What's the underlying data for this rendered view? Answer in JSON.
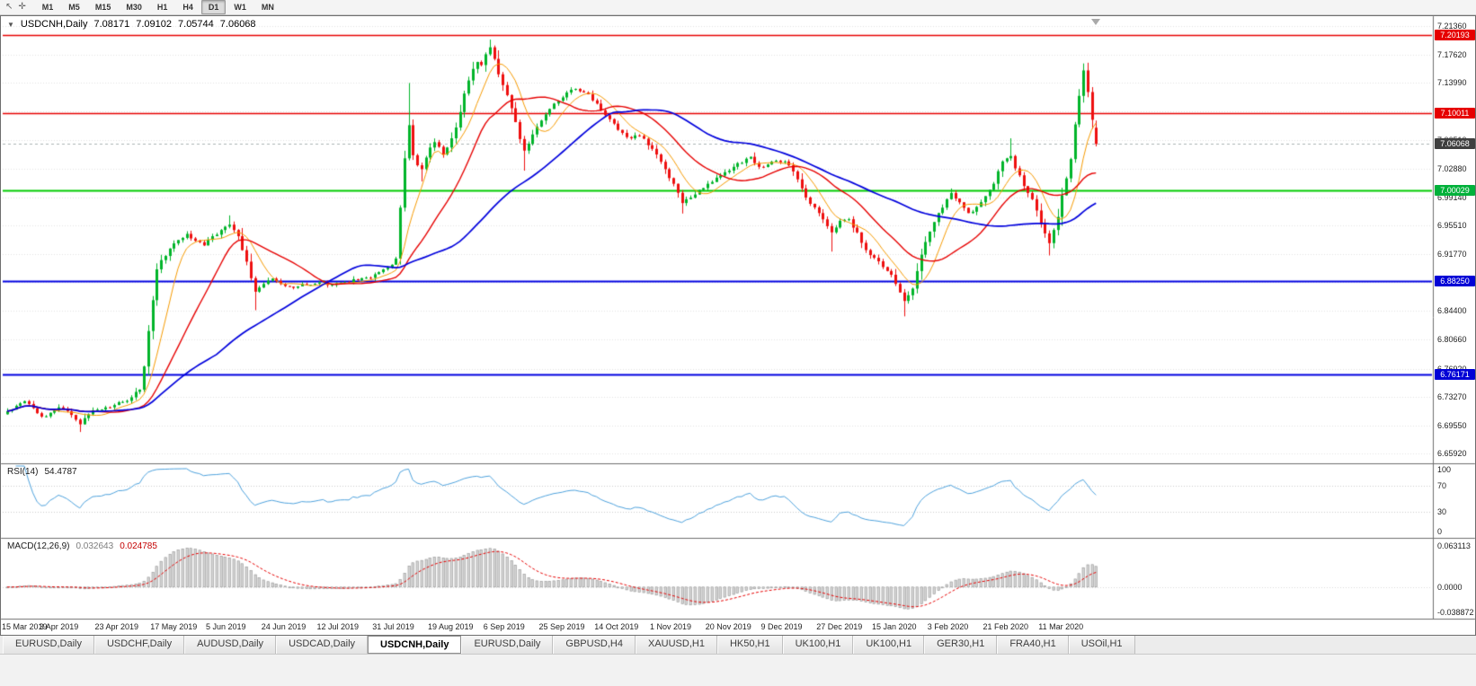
{
  "toolbar": {
    "timeframes": [
      "M1",
      "M5",
      "M15",
      "M30",
      "H1",
      "H4",
      "D1",
      "W1",
      "MN"
    ],
    "active_timeframe": "D1"
  },
  "main_chart": {
    "title_symbol": "USDCNH,Daily",
    "ohlc": {
      "open": "7.08171",
      "high": "7.09102",
      "low": "7.05744",
      "close": "7.06068"
    },
    "y_ticks": [
      "7.21360",
      "7.17620",
      "7.13990",
      "7.10250",
      "7.06510",
      "7.02880",
      "6.99140",
      "6.95510",
      "6.91770",
      "6.88140",
      "6.84400",
      "6.80660",
      "6.76920",
      "6.73270",
      "6.69550",
      "6.65920"
    ],
    "badges": [
      {
        "label": "7.20193",
        "price": 7.20193,
        "color": "#e60000"
      },
      {
        "label": "7.10011",
        "price": 7.10011,
        "color": "#e60000"
      },
      {
        "label": "7.06068",
        "price": 7.06068,
        "color": "#3f3f3f"
      },
      {
        "label": "7.00029",
        "price": 7.00029,
        "color": "#00b13a"
      },
      {
        "label": "6.88250",
        "price": 6.8825,
        "color": "#0202d6"
      },
      {
        "label": "6.76171",
        "price": 6.76171,
        "color": "#0202d6"
      }
    ]
  },
  "rsi_panel": {
    "name": "RSI(14)",
    "value": "54.4787",
    "levels": [
      {
        "label": "100",
        "value": 100
      },
      {
        "label": "70",
        "value": 70
      },
      {
        "label": "30",
        "value": 30
      },
      {
        "label": "0",
        "value": 0
      }
    ]
  },
  "macd_panel": {
    "name": "MACD(12,26,9)",
    "value_main": "0.032643",
    "value_signal": "0.024785",
    "levels": [
      {
        "label": "0.063113",
        "value": 0.063113
      },
      {
        "label": "0.0000",
        "value": 0
      },
      {
        "label": "-0.038872",
        "value": -0.038872
      }
    ]
  },
  "x_axis": {
    "labels": [
      "15 Mar 2019",
      "3 Apr 2019",
      "23 Apr 2019",
      "17 May 2019",
      "5 Jun 2019",
      "24 Jun 2019",
      "12 Jul 2019",
      "31 Jul 2019",
      "19 Aug 2019",
      "6 Sep 2019",
      "25 Sep 2019",
      "14 Oct 2019",
      "1 Nov 2019",
      "20 Nov 2019",
      "9 Dec 2019",
      "27 Dec 2019",
      "15 Jan 2020",
      "3 Feb 2020",
      "21 Feb 2020",
      "11 Mar 2020"
    ]
  },
  "tabs": {
    "active_index": 4,
    "items": [
      "EURUSD,Daily",
      "USDCHF,Daily",
      "AUDUSD,Daily",
      "USDCAD,Daily",
      "USDCNH,Daily",
      "EURUSD,Daily",
      "GBPUSD,H4",
      "XAUUSD,H1",
      "HK50,H1",
      "UK100,H1",
      "UK100,H1",
      "GER30,H1",
      "FRA40,H1",
      "USOil,H1"
    ]
  },
  "chart_data": {
    "type": "candlestick",
    "symbol": "USDCNH",
    "timeframe": "Daily",
    "bars": 256,
    "y_range": [
      6.6592,
      7.2136
    ],
    "label_every_bars": 13,
    "last_bar_ohlc": [
      7.08171,
      7.09102,
      7.05744,
      7.06068
    ],
    "price_anchors": [
      [
        0,
        6.714
      ],
      [
        2,
        6.721
      ],
      [
        4,
        6.727
      ],
      [
        6,
        6.718
      ],
      [
        8,
        6.707
      ],
      [
        10,
        6.712
      ],
      [
        12,
        6.719
      ],
      [
        14,
        6.714
      ],
      [
        16,
        6.703
      ],
      [
        17,
        6.697
      ],
      [
        19,
        6.71
      ],
      [
        21,
        6.716
      ],
      [
        23,
        6.719
      ],
      [
        25,
        6.722
      ],
      [
        27,
        6.726
      ],
      [
        29,
        6.732
      ],
      [
        31,
        6.742
      ],
      [
        32,
        6.772
      ],
      [
        33,
        6.818
      ],
      [
        34,
        6.858
      ],
      [
        35,
        6.898
      ],
      [
        36,
        6.91
      ],
      [
        38,
        6.925
      ],
      [
        40,
        6.936
      ],
      [
        42,
        6.944
      ],
      [
        44,
        6.935
      ],
      [
        46,
        6.929
      ],
      [
        48,
        6.941
      ],
      [
        50,
        6.949
      ],
      [
        52,
        6.956
      ],
      [
        54,
        6.941
      ],
      [
        56,
        6.908
      ],
      [
        58,
        6.869
      ],
      [
        60,
        6.879
      ],
      [
        62,
        6.886
      ],
      [
        64,
        6.879
      ],
      [
        67,
        6.874
      ],
      [
        70,
        6.878
      ],
      [
        73,
        6.881
      ],
      [
        76,
        6.878
      ],
      [
        79,
        6.881
      ],
      [
        82,
        6.884
      ],
      [
        85,
        6.887
      ],
      [
        88,
        6.898
      ],
      [
        90,
        6.904
      ],
      [
        91,
        6.912
      ],
      [
        92,
        6.978
      ],
      [
        93,
        7.042
      ],
      [
        94,
        7.085
      ],
      [
        95,
        7.046
      ],
      [
        96,
        7.033
      ],
      [
        97,
        7.028
      ],
      [
        98,
        7.043
      ],
      [
        99,
        7.056
      ],
      [
        100,
        7.063
      ],
      [
        101,
        7.057
      ],
      [
        102,
        7.047
      ],
      [
        103,
        7.056
      ],
      [
        104,
        7.068
      ],
      [
        105,
        7.082
      ],
      [
        106,
        7.102
      ],
      [
        107,
        7.126
      ],
      [
        108,
        7.143
      ],
      [
        109,
        7.158
      ],
      [
        110,
        7.167
      ],
      [
        111,
        7.163
      ],
      [
        112,
        7.177
      ],
      [
        113,
        7.186
      ],
      [
        114,
        7.171
      ],
      [
        115,
        7.151
      ],
      [
        116,
        7.137
      ],
      [
        117,
        7.124
      ],
      [
        118,
        7.107
      ],
      [
        119,
        7.089
      ],
      [
        120,
        7.067
      ],
      [
        121,
        7.052
      ],
      [
        122,
        7.061
      ],
      [
        123,
        7.073
      ],
      [
        124,
        7.083
      ],
      [
        125,
        7.091
      ],
      [
        126,
        7.099
      ],
      [
        127,
        7.106
      ],
      [
        128,
        7.113
      ],
      [
        130,
        7.121
      ],
      [
        132,
        7.131
      ],
      [
        134,
        7.129
      ],
      [
        136,
        7.125
      ],
      [
        138,
        7.113
      ],
      [
        140,
        7.098
      ],
      [
        142,
        7.087
      ],
      [
        144,
        7.075
      ],
      [
        146,
        7.068
      ],
      [
        148,
        7.071
      ],
      [
        150,
        7.059
      ],
      [
        152,
        7.047
      ],
      [
        154,
        7.028
      ],
      [
        156,
        7.009
      ],
      [
        158,
        6.984
      ],
      [
        160,
        6.991
      ],
      [
        162,
        7.001
      ],
      [
        164,
        7.009
      ],
      [
        166,
        7.017
      ],
      [
        168,
        7.024
      ],
      [
        170,
        7.031
      ],
      [
        172,
        7.036
      ],
      [
        174,
        7.044
      ],
      [
        176,
        7.031
      ],
      [
        178,
        7.034
      ],
      [
        180,
        7.039
      ],
      [
        182,
        7.038
      ],
      [
        184,
        7.025
      ],
      [
        186,
        7.003
      ],
      [
        188,
        6.983
      ],
      [
        190,
        6.971
      ],
      [
        192,
        6.954
      ],
      [
        193,
        6.946
      ],
      [
        195,
        6.961
      ],
      [
        197,
        6.963
      ],
      [
        199,
        6.946
      ],
      [
        201,
        6.923
      ],
      [
        203,
        6.913
      ],
      [
        205,
        6.901
      ],
      [
        207,
        6.891
      ],
      [
        209,
        6.868
      ],
      [
        210,
        6.857
      ],
      [
        212,
        6.873
      ],
      [
        214,
        6.917
      ],
      [
        216,
        6.947
      ],
      [
        218,
        6.971
      ],
      [
        220,
        6.989
      ],
      [
        221,
        6.997
      ],
      [
        223,
        6.985
      ],
      [
        225,
        6.971
      ],
      [
        227,
        6.979
      ],
      [
        229,
        6.993
      ],
      [
        231,
        7.009
      ],
      [
        233,
        7.038
      ],
      [
        234,
        7.042
      ],
      [
        235,
        7.045
      ],
      [
        236,
        7.029
      ],
      [
        238,
        7.006
      ],
      [
        240,
        6.989
      ],
      [
        242,
        6.957
      ],
      [
        244,
        6.932
      ],
      [
        246,
        6.966
      ],
      [
        247,
        6.994
      ],
      [
        248,
        7.016
      ],
      [
        249,
        7.041
      ],
      [
        250,
        7.086
      ],
      [
        251,
        7.123
      ],
      [
        252,
        7.156
      ],
      [
        253,
        7.128
      ],
      [
        254,
        7.092
      ],
      [
        255,
        7.06068
      ]
    ],
    "wick_overrides": [
      [
        17,
        "low",
        6.687
      ],
      [
        52,
        "high",
        6.968
      ],
      [
        58,
        "low",
        6.845
      ],
      [
        94,
        "high",
        7.1397
      ],
      [
        97,
        "low",
        7.012
      ],
      [
        113,
        "high",
        7.196
      ],
      [
        121,
        "low",
        7.026
      ],
      [
        158,
        "low",
        6.9704
      ],
      [
        193,
        "low",
        6.921
      ],
      [
        210,
        "low",
        6.837
      ],
      [
        235,
        "high",
        7.068
      ],
      [
        244,
        "low",
        6.916
      ],
      [
        252,
        "high",
        7.1651
      ]
    ],
    "hlines": [
      {
        "price": 7.20193,
        "color": "#e60000",
        "width": 1.5
      },
      {
        "price": 7.10011,
        "color": "#e60000",
        "width": 1.5
      },
      {
        "price": 7.00029,
        "color": "#00cc00",
        "width": 2
      },
      {
        "price": 6.8825,
        "color": "#0000e0",
        "width": 2
      },
      {
        "price": 6.76171,
        "color": "#0000e0",
        "width": 2
      }
    ],
    "bid_line": {
      "price": 7.06068,
      "style": "dashed",
      "color": "#a8b2b2"
    },
    "moving_averages": [
      {
        "period": 8,
        "method": "sma",
        "color": "#f59a00",
        "width": 1
      },
      {
        "period": 20,
        "method": "sma",
        "color": "#e60000",
        "width": 1.4
      },
      {
        "period": 50,
        "method": "sma",
        "color": "#0000dc",
        "width": 1.7
      }
    ],
    "rsi": {
      "period": 14,
      "current": 54.4787,
      "levels": [
        70,
        30
      ],
      "color": "#4da1dc",
      "range": [
        0,
        100
      ]
    },
    "macd": {
      "fast": 12,
      "slow": 26,
      "signal": 9,
      "current_main": 0.032643,
      "current_signal": 0.024785,
      "range": [
        -0.038872,
        0.063113
      ],
      "histogram_fill": "#d6d6d6",
      "histogram_stroke": "#8f8f8f",
      "signal_color": "#e60000"
    },
    "up_color": "#00b42a",
    "down_color": "#ee0f0f"
  }
}
